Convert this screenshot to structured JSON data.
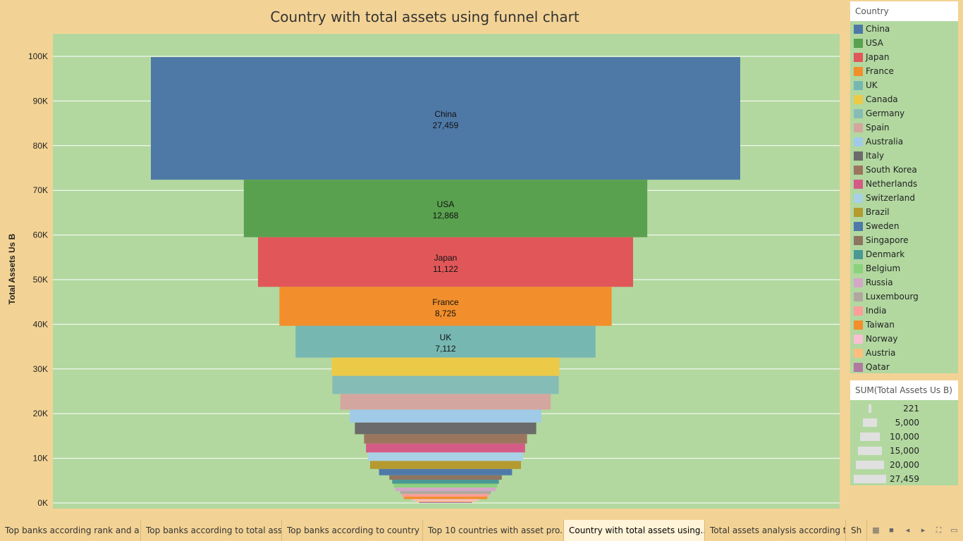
{
  "chart_data": {
    "type": "bar",
    "title": "Country with total assets using funnel chart",
    "ylabel": "Total Assets Us B",
    "ylim": [
      0,
      100000
    ],
    "yticks": [
      "0K",
      "10K",
      "20K",
      "30K",
      "40K",
      "50K",
      "60K",
      "70K",
      "80K",
      "90K",
      "100K"
    ],
    "grid": true,
    "categories": [
      "China",
      "USA",
      "Japan",
      "France",
      "UK",
      "Canada",
      "Germany",
      "Spain",
      "Australia",
      "Italy",
      "South Korea",
      "Netherlands",
      "Switzerland",
      "Brazil",
      "Sweden",
      "Singapore",
      "Denmark",
      "Belgium",
      "Russia",
      "Luxembourg",
      "India",
      "Taiwan",
      "Norway",
      "Austria",
      "Qatar"
    ],
    "values": [
      27459,
      12868,
      11122,
      8725,
      7112,
      4100,
      4050,
      3500,
      2900,
      2600,
      2100,
      2000,
      1900,
      1800,
      1400,
      1000,
      900,
      850,
      800,
      650,
      600,
      550,
      350,
      280,
      221
    ],
    "colors": [
      "#4e79a7",
      "#59a14f",
      "#e15759",
      "#f28e2b",
      "#76b7b2",
      "#edc948",
      "#86bcb6",
      "#d4a6a0",
      "#a0cbe8",
      "#6b6b6b",
      "#9c755f",
      "#d45b85",
      "#a8d1e7",
      "#b59a2f",
      "#4f79a8",
      "#8e7560",
      "#499894",
      "#8cd17d",
      "#d4a6c8",
      "#b0a89f",
      "#ff9d9a",
      "#f28e2b",
      "#fabfd2",
      "#ffbe7d",
      "#b07aa1"
    ],
    "labeled": [
      {
        "name": "China",
        "value": "27,459"
      },
      {
        "name": "USA",
        "value": "12,868"
      },
      {
        "name": "Japan",
        "value": "11,122"
      },
      {
        "name": "France",
        "value": "8,725"
      },
      {
        "name": "UK",
        "value": "7,112"
      }
    ]
  },
  "legend": {
    "title": "Country"
  },
  "size_legend": {
    "title": "SUM(Total Assets Us B)",
    "items": [
      "221",
      "5,000",
      "10,000",
      "15,000",
      "20,000",
      "27,459"
    ]
  },
  "tabs": [
    "Top banks according rank and a...",
    "Top banks according to total ass...",
    "Top banks according to country ...",
    "Top 10 countries with asset pro...",
    "Country with total assets using...",
    "Total assets analysis according t...",
    "Sh"
  ],
  "active_tab": 4
}
